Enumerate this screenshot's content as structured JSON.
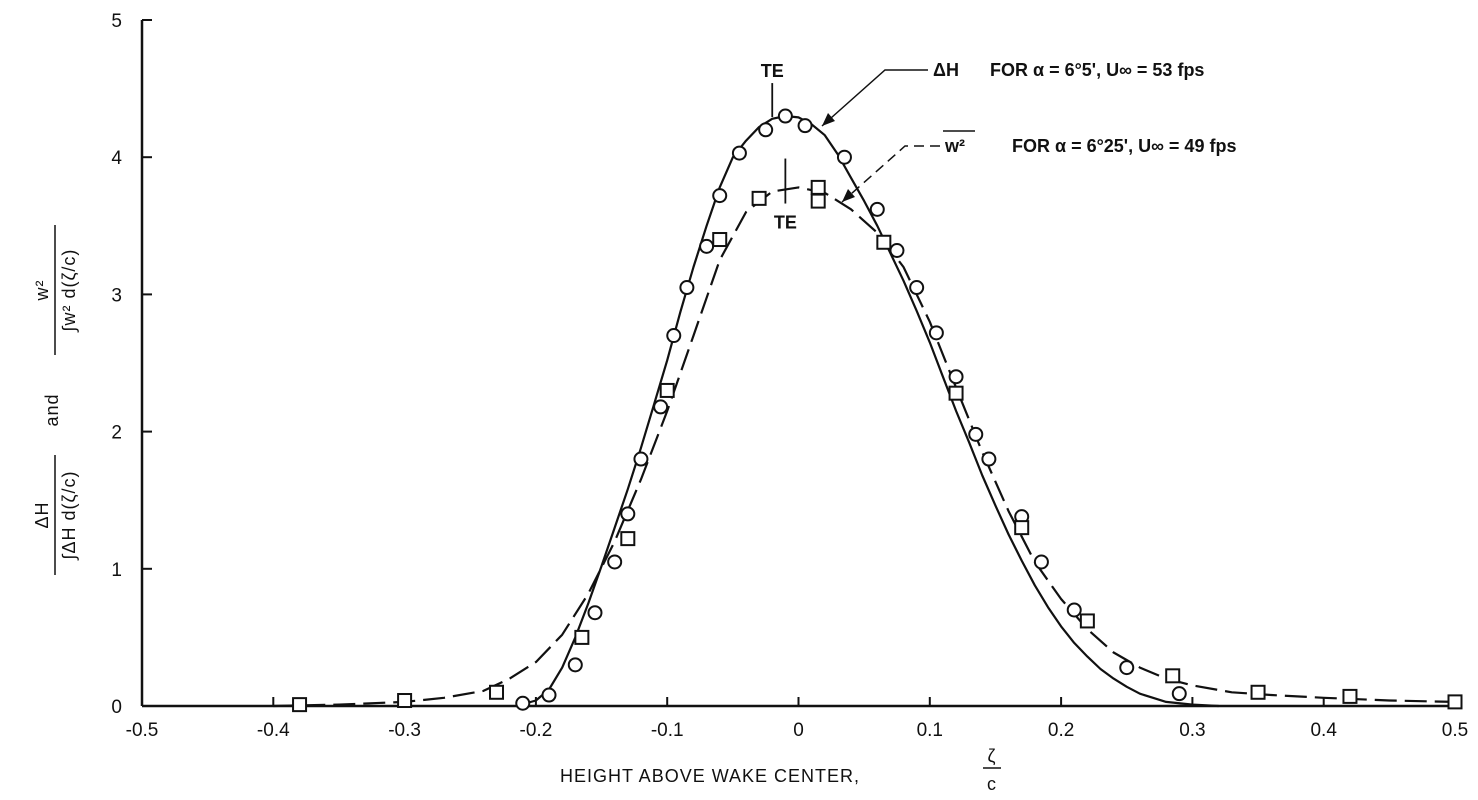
{
  "chart_data": {
    "type": "line",
    "title": "",
    "xlabel": "HEIGHT ABOVE WAKE CENTER,",
    "xlabel_frac": {
      "num": "ζ",
      "den": "c"
    },
    "ylabel": {
      "term1_num": "ΔH",
      "term1_den": "∫ΔH d(ζ/c)",
      "joiner": "and",
      "term2_num": "w²",
      "term2_den": "∫w² d(ζ/c)"
    },
    "xlim": [
      -0.5,
      0.5
    ],
    "ylim": [
      0,
      5
    ],
    "x_ticks": [
      -0.5,
      -0.4,
      -0.3,
      -0.2,
      -0.1,
      0,
      0.1,
      0.2,
      0.3,
      0.4,
      0.5
    ],
    "x_tick_labels": [
      "-0.5",
      "-0.4",
      "-0.3",
      "-0.2",
      "-0.1",
      "0",
      "0.1",
      "0.2",
      "0.3",
      "0.4",
      "0.5"
    ],
    "y_ticks": [
      0,
      1,
      2,
      3,
      4,
      5
    ],
    "y_tick_labels": [
      "0",
      "1",
      "2",
      "3",
      "4",
      "5"
    ],
    "grid": false,
    "series": [
      {
        "name": "ΔH FOR α = 6°5', U∞ = 53 fps",
        "marker": "circle",
        "line_style": "solid",
        "curve": [
          [
            -0.215,
            0
          ],
          [
            -0.2,
            0.04
          ],
          [
            -0.19,
            0.12
          ],
          [
            -0.18,
            0.28
          ],
          [
            -0.17,
            0.5
          ],
          [
            -0.16,
            0.75
          ],
          [
            -0.15,
            1.02
          ],
          [
            -0.14,
            1.3
          ],
          [
            -0.13,
            1.58
          ],
          [
            -0.12,
            1.88
          ],
          [
            -0.11,
            2.2
          ],
          [
            -0.1,
            2.52
          ],
          [
            -0.09,
            2.87
          ],
          [
            -0.08,
            3.2
          ],
          [
            -0.07,
            3.5
          ],
          [
            -0.06,
            3.78
          ],
          [
            -0.05,
            4.0
          ],
          [
            -0.04,
            4.12
          ],
          [
            -0.03,
            4.22
          ],
          [
            -0.02,
            4.28
          ],
          [
            -0.01,
            4.3
          ],
          [
            0,
            4.29
          ],
          [
            0.01,
            4.24
          ],
          [
            0.02,
            4.16
          ],
          [
            0.03,
            4.02
          ],
          [
            0.04,
            3.85
          ],
          [
            0.05,
            3.68
          ],
          [
            0.06,
            3.5
          ],
          [
            0.07,
            3.3
          ],
          [
            0.08,
            3.1
          ],
          [
            0.09,
            2.88
          ],
          [
            0.1,
            2.65
          ],
          [
            0.11,
            2.4
          ],
          [
            0.12,
            2.15
          ],
          [
            0.13,
            1.92
          ],
          [
            0.14,
            1.68
          ],
          [
            0.15,
            1.46
          ],
          [
            0.16,
            1.25
          ],
          [
            0.17,
            1.06
          ],
          [
            0.18,
            0.88
          ],
          [
            0.19,
            0.72
          ],
          [
            0.2,
            0.58
          ],
          [
            0.21,
            0.46
          ],
          [
            0.22,
            0.36
          ],
          [
            0.23,
            0.27
          ],
          [
            0.24,
            0.2
          ],
          [
            0.25,
            0.14
          ],
          [
            0.26,
            0.09
          ],
          [
            0.27,
            0.06
          ],
          [
            0.28,
            0.03
          ],
          [
            0.3,
            0.01
          ],
          [
            0.32,
            0
          ]
        ],
        "points": [
          [
            -0.21,
            0.02
          ],
          [
            -0.19,
            0.08
          ],
          [
            -0.17,
            0.3
          ],
          [
            -0.155,
            0.68
          ],
          [
            -0.14,
            1.05
          ],
          [
            -0.13,
            1.4
          ],
          [
            -0.12,
            1.8
          ],
          [
            -0.105,
            2.18
          ],
          [
            -0.095,
            2.7
          ],
          [
            -0.085,
            3.05
          ],
          [
            -0.07,
            3.35
          ],
          [
            -0.06,
            3.72
          ],
          [
            -0.045,
            4.03
          ],
          [
            -0.025,
            4.2
          ],
          [
            -0.01,
            4.3
          ],
          [
            0.005,
            4.23
          ],
          [
            0.035,
            4.0
          ],
          [
            0.06,
            3.62
          ],
          [
            0.075,
            3.32
          ],
          [
            0.09,
            3.05
          ],
          [
            0.105,
            2.72
          ],
          [
            0.12,
            2.4
          ],
          [
            0.135,
            1.98
          ],
          [
            0.145,
            1.8
          ],
          [
            0.17,
            1.38
          ],
          [
            0.185,
            1.05
          ],
          [
            0.21,
            0.7
          ],
          [
            0.25,
            0.28
          ],
          [
            0.29,
            0.09
          ]
        ]
      },
      {
        "name": "w² FOR α = 6°25', U∞ = 49 fps",
        "marker": "square",
        "line_style": "dashed",
        "curve": [
          [
            -0.4,
            0
          ],
          [
            -0.35,
            0.01
          ],
          [
            -0.3,
            0.03
          ],
          [
            -0.27,
            0.06
          ],
          [
            -0.24,
            0.11
          ],
          [
            -0.22,
            0.2
          ],
          [
            -0.2,
            0.32
          ],
          [
            -0.18,
            0.52
          ],
          [
            -0.16,
            0.82
          ],
          [
            -0.14,
            1.2
          ],
          [
            -0.12,
            1.65
          ],
          [
            -0.1,
            2.15
          ],
          [
            -0.08,
            2.7
          ],
          [
            -0.06,
            3.25
          ],
          [
            -0.04,
            3.6
          ],
          [
            -0.02,
            3.75
          ],
          [
            0,
            3.78
          ],
          [
            0.02,
            3.74
          ],
          [
            0.04,
            3.62
          ],
          [
            0.06,
            3.45
          ],
          [
            0.08,
            3.2
          ],
          [
            0.1,
            2.8
          ],
          [
            0.12,
            2.32
          ],
          [
            0.14,
            1.85
          ],
          [
            0.16,
            1.42
          ],
          [
            0.18,
            1.05
          ],
          [
            0.2,
            0.78
          ],
          [
            0.22,
            0.56
          ],
          [
            0.24,
            0.39
          ],
          [
            0.26,
            0.28
          ],
          [
            0.28,
            0.2
          ],
          [
            0.3,
            0.15
          ],
          [
            0.33,
            0.1
          ],
          [
            0.36,
            0.08
          ],
          [
            0.4,
            0.06
          ],
          [
            0.45,
            0.04
          ],
          [
            0.5,
            0.03
          ]
        ],
        "points": [
          [
            -0.38,
            0.01
          ],
          [
            -0.3,
            0.04
          ],
          [
            -0.23,
            0.1
          ],
          [
            -0.165,
            0.5
          ],
          [
            -0.13,
            1.22
          ],
          [
            -0.1,
            2.3
          ],
          [
            -0.06,
            3.4
          ],
          [
            -0.03,
            3.7
          ],
          [
            0.015,
            3.78
          ],
          [
            0.015,
            3.68
          ],
          [
            0.065,
            3.38
          ],
          [
            0.12,
            2.28
          ],
          [
            0.17,
            1.3
          ],
          [
            0.22,
            0.62
          ],
          [
            0.285,
            0.22
          ],
          [
            0.35,
            0.1
          ],
          [
            0.42,
            0.07
          ],
          [
            0.5,
            0.03
          ]
        ]
      }
    ],
    "annotations": [
      {
        "text": "TE",
        "x": -0.02,
        "y": 4.38,
        "series": 0
      },
      {
        "text": "TE",
        "x": -0.01,
        "y": 3.48,
        "series": 1
      }
    ],
    "legend_labels": [
      {
        "series": 0,
        "prefix": "ΔH",
        "text": "FOR  α = 6°5',  U∞ = 53 fps"
      },
      {
        "series": 1,
        "prefix": "w²",
        "text": "FOR  α = 6°25',  U∞ = 49 fps"
      }
    ]
  }
}
